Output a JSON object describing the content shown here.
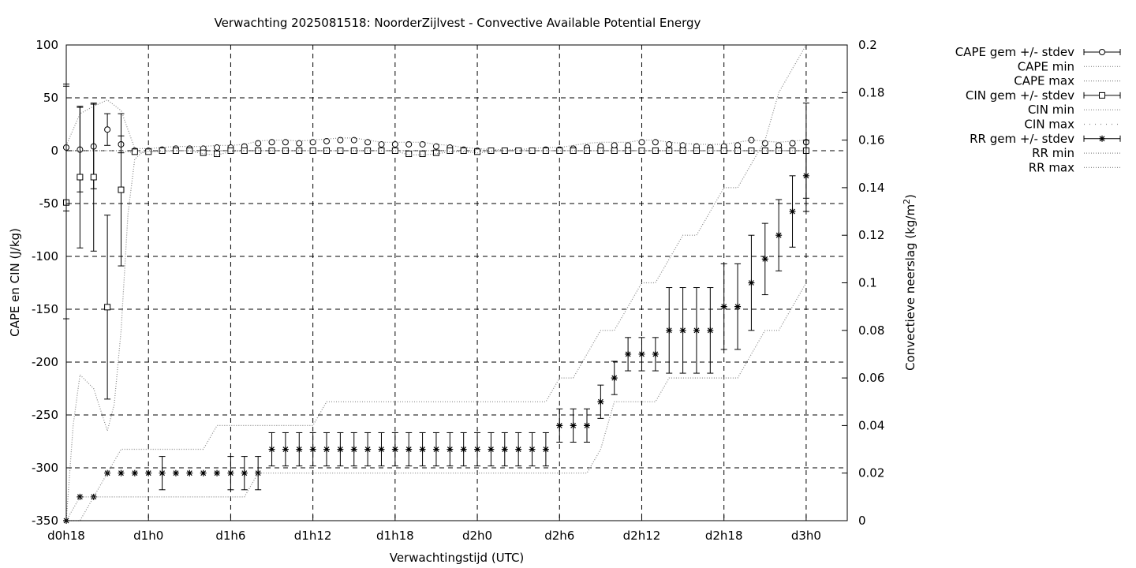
{
  "title": "Verwachting 2025081518: NoorderZijlvest - Convective Available Potential Energy",
  "chart_data": {
    "type": "line",
    "xlabel": "Verwachtingstijd (UTC)",
    "ylabel_left": "CAPE en CIN (J/kg)",
    "ylabel_right_prefix": "Convectieve neerslag (kg/m",
    "ylabel_right_sup": "2",
    "ylabel_right_suffix": ")",
    "xlim": [
      18,
      75
    ],
    "ylim_left": [
      -350,
      100
    ],
    "ylim_right": [
      0,
      0.2
    ],
    "grid": true,
    "x_tick_values": [
      18,
      24,
      30,
      36,
      42,
      48,
      54,
      60,
      66,
      72
    ],
    "x_tick_labels": [
      "d0h18",
      "d1h0",
      "d1h6",
      "d1h12",
      "d1h18",
      "d2h0",
      "d2h6",
      "d2h12",
      "d2h18",
      "d3h0"
    ],
    "y_left_ticks": [
      100,
      50,
      0,
      -50,
      -100,
      -150,
      -200,
      -250,
      -300,
      -350
    ],
    "y_right_ticks": [
      0.2,
      0.18,
      0.16,
      0.14,
      0.12,
      0.1,
      0.08,
      0.06,
      0.04,
      0.02,
      0
    ],
    "y_right_tick_labels": [
      "0.2",
      "0.18",
      "0.16",
      "0.14",
      "0.12",
      "0.1",
      "0.08",
      "0.06",
      "0.04",
      "0.02",
      "0"
    ],
    "series": [
      {
        "name": "CAPE gem +/- stdev",
        "marker": "circle",
        "axis": "left",
        "x": [
          18,
          19,
          20,
          21,
          22,
          23,
          24,
          25,
          26,
          27,
          28,
          29,
          30,
          31,
          32,
          33,
          34,
          35,
          36,
          37,
          38,
          39,
          40,
          41,
          42,
          43,
          44,
          45,
          46,
          47,
          48,
          49,
          50,
          51,
          52,
          53,
          54,
          55,
          56,
          57,
          58,
          59,
          60,
          61,
          62,
          63,
          64,
          65,
          66,
          67,
          68,
          69,
          70,
          71,
          72
        ],
        "y": [
          3,
          1,
          4,
          20,
          6,
          0,
          0,
          1,
          2,
          2,
          2,
          3,
          3,
          4,
          7,
          8,
          8,
          7,
          8,
          9,
          10,
          10,
          8,
          6,
          6,
          6,
          6,
          4,
          3,
          1,
          0,
          0,
          0,
          0,
          0,
          1,
          1,
          2,
          3,
          4,
          5,
          5,
          8,
          8,
          6,
          5,
          4,
          3,
          4,
          5,
          10,
          7,
          5,
          7,
          8
        ],
        "err": [
          60,
          40,
          40,
          15,
          8,
          0,
          0,
          0,
          0,
          0,
          0,
          0,
          0,
          0,
          0,
          0,
          0,
          0,
          0,
          0,
          0,
          0,
          0,
          0,
          0,
          0,
          0,
          0,
          0,
          0,
          0,
          0,
          0,
          0,
          0,
          0,
          0,
          0,
          0,
          0,
          0,
          0,
          0,
          0,
          0,
          0,
          0,
          0,
          0,
          0,
          0,
          0,
          0,
          0,
          0
        ]
      },
      {
        "name": "CAPE min",
        "dotted": true,
        "axis": "left",
        "x": [
          18,
          19,
          20,
          21,
          22,
          23,
          24,
          25,
          26,
          27,
          28,
          29,
          30,
          31,
          32,
          33,
          34,
          35,
          36,
          37,
          38,
          39,
          40,
          41,
          42,
          43,
          44,
          45,
          46,
          47,
          48,
          49,
          50,
          51,
          52,
          53,
          54,
          55,
          56,
          57,
          58,
          59,
          60,
          61,
          62,
          63,
          64,
          65,
          66,
          67,
          68,
          69,
          70,
          71,
          72
        ],
        "y": [
          0,
          0,
          0,
          0,
          0,
          -2,
          -1,
          0,
          0,
          0,
          0,
          0,
          0,
          0,
          0,
          0,
          0,
          0,
          0,
          0,
          0,
          0,
          0,
          0,
          0,
          0,
          0,
          0,
          0,
          0,
          0,
          0,
          0,
          0,
          0,
          0,
          0,
          0,
          0,
          0,
          0,
          0,
          0,
          0,
          0,
          0,
          0,
          0,
          0,
          0,
          0,
          0,
          0,
          0,
          0
        ]
      },
      {
        "name": "CAPE max",
        "dotted": true,
        "axis": "left",
        "x": [
          18,
          19,
          20,
          21,
          22,
          23,
          24,
          25,
          26,
          27,
          28,
          29,
          30,
          31,
          32,
          33,
          34,
          35,
          36,
          37,
          38,
          39,
          40,
          41,
          42,
          43,
          44,
          45,
          46,
          47,
          48,
          49,
          50,
          51,
          52,
          53,
          54,
          55,
          56,
          57,
          58,
          59,
          60,
          61,
          62,
          63,
          64,
          65,
          66,
          67,
          68,
          69,
          70,
          71,
          72
        ],
        "y": [
          5,
          35,
          42,
          48,
          38,
          2,
          2,
          3,
          4,
          4,
          4,
          5,
          5,
          6,
          9,
          10,
          10,
          9,
          10,
          11,
          12,
          12,
          10,
          8,
          8,
          8,
          8,
          6,
          5,
          3,
          2,
          1,
          1,
          1,
          2,
          3,
          3,
          5,
          7,
          8,
          8,
          8,
          10,
          10,
          8,
          7,
          6,
          6,
          6,
          8,
          10,
          9,
          8,
          9,
          10
        ]
      },
      {
        "name": "CIN gem +/- stdev",
        "marker": "square",
        "axis": "left",
        "x": [
          18,
          19,
          20,
          21,
          22,
          23,
          24,
          25,
          26,
          27,
          28,
          29,
          30,
          31,
          32,
          33,
          34,
          35,
          36,
          37,
          38,
          39,
          40,
          41,
          42,
          43,
          44,
          45,
          46,
          47,
          48,
          49,
          50,
          51,
          52,
          53,
          54,
          55,
          56,
          57,
          58,
          59,
          60,
          61,
          62,
          63,
          64,
          65,
          66,
          67,
          68,
          69,
          70,
          71,
          72
        ],
        "y": [
          -49,
          -25,
          -25,
          -148,
          -37,
          -1,
          -1,
          0,
          0,
          0,
          -2,
          -3,
          0,
          0,
          0,
          0,
          0,
          0,
          0,
          0,
          0,
          0,
          0,
          0,
          0,
          -3,
          -3,
          -2,
          0,
          0,
          -1,
          0,
          0,
          0,
          0,
          0,
          0,
          0,
          0,
          0,
          0,
          0,
          0,
          0,
          0,
          0,
          0,
          0,
          0,
          0,
          0,
          0,
          0,
          0,
          0
        ],
        "err": [
          110,
          67,
          70,
          87,
          72,
          0,
          0,
          0,
          0,
          0,
          0,
          0,
          0,
          0,
          0,
          0,
          0,
          0,
          0,
          0,
          0,
          0,
          0,
          0,
          0,
          0,
          0,
          0,
          0,
          0,
          0,
          0,
          0,
          0,
          0,
          0,
          0,
          0,
          0,
          0,
          0,
          0,
          0,
          0,
          0,
          0,
          0,
          0,
          0,
          0,
          0,
          0,
          0,
          0,
          45
        ]
      },
      {
        "name": "CIN min",
        "dotted": true,
        "axis": "left",
        "x": [
          18,
          18.5,
          19,
          20,
          20.5,
          21,
          21.5,
          22,
          22.5,
          23,
          23.5,
          24,
          25,
          26,
          27,
          28,
          29,
          30,
          31,
          32,
          33,
          34,
          35,
          36,
          37,
          38,
          39,
          40,
          41,
          42,
          43,
          44,
          45,
          46,
          47,
          48,
          49,
          50,
          51,
          52,
          53,
          54,
          55,
          56,
          57,
          58,
          59,
          60,
          61,
          62,
          63,
          64,
          65,
          66,
          67,
          68,
          69,
          70,
          71,
          72
        ],
        "y": [
          -350,
          -260,
          -212,
          -225,
          -245,
          -265,
          -240,
          -170,
          -60,
          -8,
          -2,
          -1,
          -1,
          0,
          0,
          -3,
          -4,
          -1,
          0,
          0,
          0,
          0,
          0,
          0,
          0,
          0,
          0,
          0,
          0,
          0,
          -4,
          -4,
          -3,
          -1,
          -1,
          -2,
          -1,
          0,
          0,
          0,
          0,
          0,
          0,
          0,
          0,
          0,
          0,
          0,
          0,
          0,
          0,
          0,
          0,
          0,
          0,
          0,
          0,
          0,
          0,
          0
        ]
      },
      {
        "name": "CIN max",
        "dotted": true,
        "axis": "left",
        "x": [
          18,
          72
        ],
        "y": [
          0,
          0
        ]
      },
      {
        "name": "RR gem +/- stdev",
        "marker": "star",
        "axis": "right",
        "x": [
          18,
          19,
          20,
          21,
          22,
          23,
          24,
          25,
          26,
          27,
          28,
          29,
          30,
          31,
          32,
          33,
          34,
          35,
          36,
          37,
          38,
          39,
          40,
          41,
          42,
          43,
          44,
          45,
          46,
          47,
          48,
          49,
          50,
          51,
          52,
          53,
          54,
          55,
          56,
          57,
          58,
          59,
          60,
          61,
          62,
          63,
          64,
          65,
          66,
          67,
          68,
          69,
          70,
          71,
          72
        ],
        "y": [
          0,
          0.01,
          0.01,
          0.02,
          0.02,
          0.02,
          0.02,
          0.02,
          0.02,
          0.02,
          0.02,
          0.02,
          0.02,
          0.02,
          0.02,
          0.03,
          0.03,
          0.03,
          0.03,
          0.03,
          0.03,
          0.03,
          0.03,
          0.03,
          0.03,
          0.03,
          0.03,
          0.03,
          0.03,
          0.03,
          0.03,
          0.03,
          0.03,
          0.03,
          0.03,
          0.03,
          0.04,
          0.04,
          0.04,
          0.05,
          0.06,
          0.07,
          0.07,
          0.07,
          0.08,
          0.08,
          0.08,
          0.08,
          0.09,
          0.09,
          0.1,
          0.11,
          0.12,
          0.13,
          0.145
        ],
        "err": [
          0,
          0,
          0,
          0,
          0,
          0,
          0,
          0.007,
          0,
          0,
          0,
          0,
          0.007,
          0.007,
          0.007,
          0.007,
          0.007,
          0.007,
          0.007,
          0.007,
          0.007,
          0.007,
          0.007,
          0.007,
          0.007,
          0.007,
          0.007,
          0.007,
          0.007,
          0.007,
          0.007,
          0.007,
          0.007,
          0.007,
          0.007,
          0.007,
          0.007,
          0.007,
          0.007,
          0.007,
          0.007,
          0.007,
          0.007,
          0.007,
          0.018,
          0.018,
          0.018,
          0.018,
          0.018,
          0.018,
          0.02,
          0.015,
          0.015,
          0.015,
          0.015
        ]
      },
      {
        "name": "RR min",
        "dotted": true,
        "axis": "right",
        "x": [
          18,
          19,
          20,
          21,
          22,
          23,
          24,
          25,
          26,
          27,
          28,
          29,
          30,
          31,
          32,
          33,
          34,
          35,
          36,
          37,
          38,
          39,
          40,
          41,
          42,
          43,
          44,
          45,
          46,
          47,
          48,
          49,
          50,
          51,
          52,
          53,
          54,
          55,
          56,
          57,
          58,
          59,
          60,
          61,
          62,
          63,
          64,
          65,
          66,
          67,
          68,
          69,
          70,
          71,
          72
        ],
        "y": [
          0,
          0,
          0.01,
          0.01,
          0.01,
          0.01,
          0.01,
          0.01,
          0.01,
          0.01,
          0.01,
          0.01,
          0.01,
          0.01,
          0.02,
          0.02,
          0.02,
          0.02,
          0.02,
          0.02,
          0.02,
          0.02,
          0.02,
          0.02,
          0.02,
          0.02,
          0.02,
          0.02,
          0.02,
          0.02,
          0.02,
          0.02,
          0.02,
          0.02,
          0.02,
          0.02,
          0.02,
          0.02,
          0.02,
          0.03,
          0.05,
          0.05,
          0.05,
          0.05,
          0.06,
          0.06,
          0.06,
          0.06,
          0.06,
          0.06,
          0.07,
          0.08,
          0.08,
          0.09,
          0.1
        ]
      },
      {
        "name": "RR max",
        "dotted": true,
        "axis": "right",
        "x": [
          18,
          19,
          20,
          21,
          22,
          23,
          24,
          25,
          26,
          27,
          28,
          29,
          30,
          31,
          32,
          33,
          34,
          35,
          36,
          37,
          38,
          39,
          40,
          41,
          42,
          43,
          44,
          45,
          46,
          47,
          48,
          49,
          50,
          51,
          52,
          53,
          54,
          55,
          56,
          57,
          58,
          59,
          60,
          61,
          62,
          63,
          64,
          65,
          66,
          67,
          68,
          69,
          70,
          71,
          72
        ],
        "y": [
          0,
          0.01,
          0.01,
          0.02,
          0.03,
          0.03,
          0.03,
          0.03,
          0.03,
          0.03,
          0.03,
          0.04,
          0.04,
          0.04,
          0.04,
          0.04,
          0.04,
          0.04,
          0.04,
          0.05,
          0.05,
          0.05,
          0.05,
          0.05,
          0.05,
          0.05,
          0.05,
          0.05,
          0.05,
          0.05,
          0.05,
          0.05,
          0.05,
          0.05,
          0.05,
          0.05,
          0.06,
          0.06,
          0.07,
          0.08,
          0.08,
          0.09,
          0.1,
          0.1,
          0.11,
          0.12,
          0.12,
          0.13,
          0.14,
          0.14,
          0.15,
          0.16,
          0.18,
          0.19,
          0.2
        ]
      }
    ]
  }
}
